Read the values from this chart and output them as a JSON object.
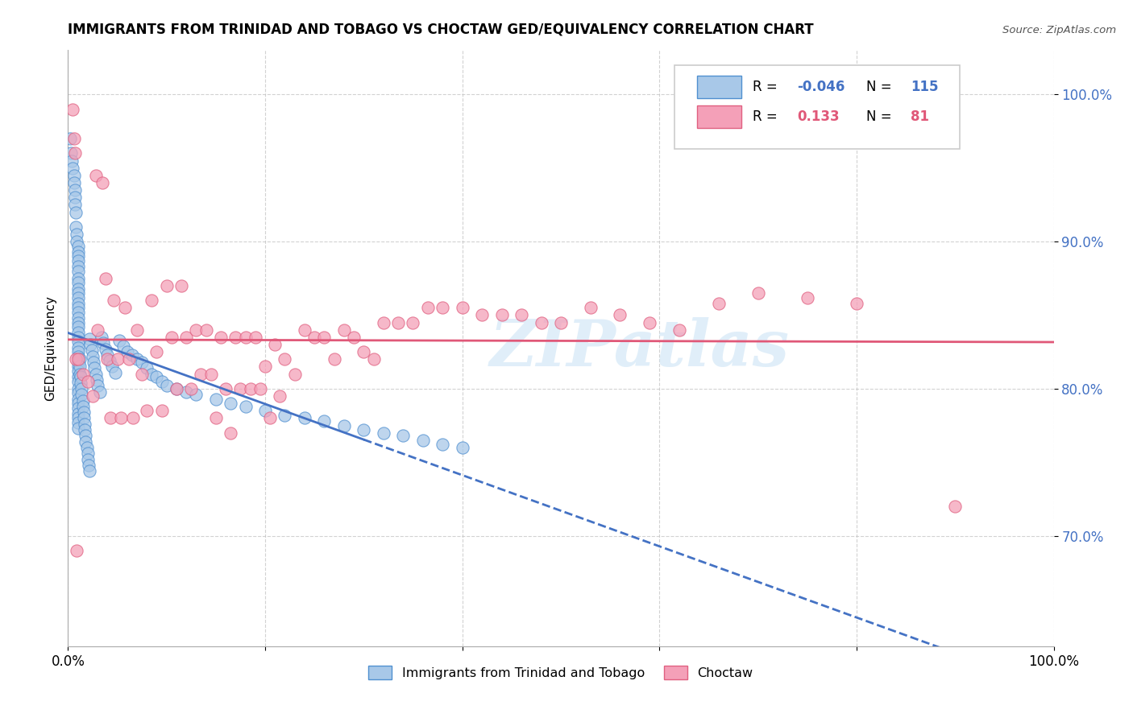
{
  "title": "IMMIGRANTS FROM TRINIDAD AND TOBAGO VS CHOCTAW GED/EQUIVALENCY CORRELATION CHART",
  "source": "Source: ZipAtlas.com",
  "ylabel": "GED/Equivalency",
  "xlim": [
    0.0,
    1.0
  ],
  "ylim": [
    0.625,
    1.03
  ],
  "x_tick_positions": [
    0.0,
    0.2,
    0.4,
    0.6,
    0.8,
    1.0
  ],
  "x_tick_labels": [
    "0.0%",
    "",
    "",
    "",
    "",
    "100.0%"
  ],
  "y_tick_vals": [
    0.7,
    0.8,
    0.9,
    1.0
  ],
  "y_tick_labels": [
    "70.0%",
    "80.0%",
    "90.0%",
    "100.0%"
  ],
  "blue_R": "-0.046",
  "blue_N": "115",
  "pink_R": "0.133",
  "pink_N": "81",
  "blue_color": "#a8c8e8",
  "pink_color": "#f4a0b8",
  "blue_edge_color": "#5090d0",
  "pink_edge_color": "#e06080",
  "blue_line_color": "#4472c4",
  "pink_line_color": "#e05878",
  "legend_label_blue": "Immigrants from Trinidad and Tobago",
  "legend_label_pink": "Choctaw",
  "watermark": "ZIPatlas",
  "blue_scatter_x": [
    0.002,
    0.003,
    0.004,
    0.005,
    0.006,
    0.006,
    0.007,
    0.007,
    0.007,
    0.008,
    0.008,
    0.009,
    0.009,
    0.01,
    0.01,
    0.01,
    0.01,
    0.01,
    0.01,
    0.01,
    0.01,
    0.01,
    0.01,
    0.01,
    0.01,
    0.01,
    0.01,
    0.01,
    0.01,
    0.01,
    0.01,
    0.01,
    0.01,
    0.01,
    0.01,
    0.01,
    0.01,
    0.01,
    0.01,
    0.01,
    0.01,
    0.01,
    0.01,
    0.01,
    0.01,
    0.01,
    0.01,
    0.01,
    0.01,
    0.01,
    0.012,
    0.012,
    0.012,
    0.013,
    0.013,
    0.014,
    0.014,
    0.015,
    0.015,
    0.016,
    0.016,
    0.017,
    0.017,
    0.018,
    0.018,
    0.019,
    0.02,
    0.02,
    0.021,
    0.022,
    0.022,
    0.023,
    0.024,
    0.025,
    0.026,
    0.027,
    0.028,
    0.029,
    0.03,
    0.032,
    0.034,
    0.036,
    0.038,
    0.04,
    0.042,
    0.045,
    0.048,
    0.052,
    0.056,
    0.06,
    0.065,
    0.07,
    0.075,
    0.08,
    0.085,
    0.09,
    0.095,
    0.1,
    0.11,
    0.12,
    0.13,
    0.15,
    0.165,
    0.18,
    0.2,
    0.22,
    0.24,
    0.26,
    0.28,
    0.3,
    0.32,
    0.34,
    0.36,
    0.38,
    0.4
  ],
  "blue_scatter_y": [
    0.97,
    0.96,
    0.955,
    0.95,
    0.945,
    0.94,
    0.935,
    0.93,
    0.925,
    0.92,
    0.91,
    0.905,
    0.9,
    0.897,
    0.893,
    0.89,
    0.887,
    0.883,
    0.88,
    0.875,
    0.872,
    0.868,
    0.865,
    0.862,
    0.858,
    0.855,
    0.852,
    0.848,
    0.845,
    0.842,
    0.838,
    0.835,
    0.832,
    0.828,
    0.825,
    0.822,
    0.818,
    0.815,
    0.812,
    0.808,
    0.805,
    0.8,
    0.797,
    0.793,
    0.79,
    0.787,
    0.783,
    0.78,
    0.777,
    0.773,
    0.82,
    0.815,
    0.81,
    0.808,
    0.804,
    0.8,
    0.796,
    0.792,
    0.788,
    0.784,
    0.78,
    0.776,
    0.772,
    0.768,
    0.764,
    0.76,
    0.756,
    0.752,
    0.748,
    0.744,
    0.834,
    0.83,
    0.826,
    0.822,
    0.818,
    0.814,
    0.81,
    0.806,
    0.802,
    0.798,
    0.835,
    0.831,
    0.827,
    0.823,
    0.819,
    0.815,
    0.811,
    0.833,
    0.829,
    0.825,
    0.823,
    0.82,
    0.818,
    0.814,
    0.81,
    0.808,
    0.805,
    0.802,
    0.8,
    0.798,
    0.796,
    0.793,
    0.79,
    0.788,
    0.785,
    0.782,
    0.78,
    0.778,
    0.775,
    0.772,
    0.77,
    0.768,
    0.765,
    0.762,
    0.76
  ],
  "pink_scatter_x": [
    0.005,
    0.006,
    0.007,
    0.008,
    0.009,
    0.01,
    0.015,
    0.02,
    0.025,
    0.028,
    0.03,
    0.035,
    0.038,
    0.04,
    0.043,
    0.046,
    0.05,
    0.054,
    0.058,
    0.062,
    0.066,
    0.07,
    0.075,
    0.08,
    0.085,
    0.09,
    0.095,
    0.1,
    0.105,
    0.11,
    0.115,
    0.12,
    0.125,
    0.13,
    0.135,
    0.14,
    0.145,
    0.15,
    0.155,
    0.16,
    0.165,
    0.17,
    0.175,
    0.18,
    0.185,
    0.19,
    0.195,
    0.2,
    0.205,
    0.21,
    0.215,
    0.22,
    0.23,
    0.24,
    0.25,
    0.26,
    0.27,
    0.28,
    0.29,
    0.3,
    0.31,
    0.32,
    0.335,
    0.35,
    0.365,
    0.38,
    0.4,
    0.42,
    0.44,
    0.46,
    0.48,
    0.5,
    0.53,
    0.56,
    0.59,
    0.62,
    0.66,
    0.7,
    0.75,
    0.8,
    0.9
  ],
  "pink_scatter_y": [
    0.99,
    0.97,
    0.96,
    0.82,
    0.69,
    0.82,
    0.81,
    0.805,
    0.795,
    0.945,
    0.84,
    0.94,
    0.875,
    0.82,
    0.78,
    0.86,
    0.82,
    0.78,
    0.855,
    0.82,
    0.78,
    0.84,
    0.81,
    0.785,
    0.86,
    0.825,
    0.785,
    0.87,
    0.835,
    0.8,
    0.87,
    0.835,
    0.8,
    0.84,
    0.81,
    0.84,
    0.81,
    0.78,
    0.835,
    0.8,
    0.77,
    0.835,
    0.8,
    0.835,
    0.8,
    0.835,
    0.8,
    0.815,
    0.78,
    0.83,
    0.795,
    0.82,
    0.81,
    0.84,
    0.835,
    0.835,
    0.82,
    0.84,
    0.835,
    0.825,
    0.82,
    0.845,
    0.845,
    0.845,
    0.855,
    0.855,
    0.855,
    0.85,
    0.85,
    0.85,
    0.845,
    0.845,
    0.855,
    0.85,
    0.845,
    0.84,
    0.858,
    0.865,
    0.862,
    0.858,
    0.72
  ]
}
